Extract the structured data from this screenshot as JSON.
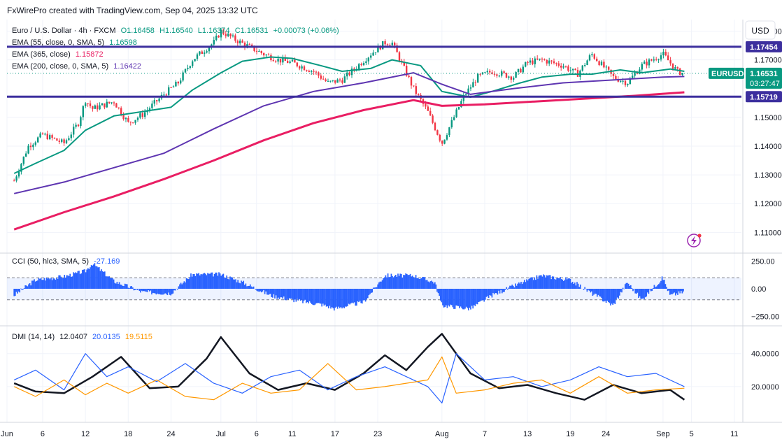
{
  "header": {
    "credit": "FxWirePro created with TradingView.com, Sep 04, 2025 13:32 UTC"
  },
  "price_pane": {
    "symbol_line": {
      "prefix": "Euro / U.S. Dollar · 4h · FXCM",
      "o": "O1.16458",
      "h": "H1.16540",
      "l": "L1.16374",
      "c": "C1.16531",
      "chg": "+0.00073 (+0.06%)"
    },
    "currency_button": "USD",
    "legends": [
      {
        "label": "EMA (55, close, 0, SMA, 5)",
        "value": "1.16598",
        "color": "#089981"
      },
      {
        "label": "EMA (365, close)",
        "value": "1.15872",
        "color": "#e91e63"
      },
      {
        "label": "EMA (200, close, 0, SMA, 5)",
        "value": "1.16422",
        "color": "#5e35b1"
      }
    ],
    "symbol_tag": "EURUSD",
    "price_tag": "1.16531",
    "countdown": "03:27:47",
    "resistance_tag": "1.17454",
    "support_tag": "1.15719",
    "colors": {
      "up": "#089981",
      "down": "#f23645",
      "level": "#3c2f9e",
      "ema55": "#089981",
      "ema200": "#5e35b1",
      "ema365": "#e91e63"
    }
  },
  "cci_pane": {
    "legend": "CCI (50, hlc3, SMA, 5)",
    "value": "-27.169",
    "color": "#2962ff"
  },
  "dmi_pane": {
    "legend": "DMI (14, 14)",
    "adx": {
      "value": "12.0407",
      "color": "#131722"
    },
    "plus_di": {
      "value": "20.0135",
      "color": "#2962ff"
    },
    "minus_di": {
      "value": "19.5115",
      "color": "#ff9800"
    }
  },
  "chart_data": [
    {
      "type": "candlestick",
      "title": "Euro / U.S. Dollar · 4h · FXCM",
      "x_ticks": [
        "Jun",
        "6",
        "12",
        "18",
        "24",
        "Jul",
        "6",
        "11",
        "17",
        "23",
        "Aug",
        "7",
        "13",
        "19",
        "24",
        "Sep",
        "5",
        "11"
      ],
      "y_ticks": [
        "1.18000",
        "1.17000",
        "1.15000",
        "1.14000",
        "1.13000",
        "1.12000",
        "1.11000"
      ],
      "ylim": [
        1.104,
        1.184
      ],
      "grid": true,
      "series": [
        {
          "name": "EMA (55, close, 0, SMA, 5)",
          "x": [
            "Jun 2",
            "Jun 5",
            "Jun 9",
            "Jun 12",
            "Jun 16",
            "Jun 20",
            "Jun 24",
            "Jun 27",
            "Jul 1",
            "Jul 4",
            "Jul 8",
            "Jul 11",
            "Jul 15",
            "Jul 18",
            "Jul 22",
            "Jul 25",
            "Jul 29",
            "Aug 1",
            "Aug 5",
            "Aug 8",
            "Aug 12",
            "Aug 15",
            "Aug 19",
            "Aug 22",
            "Aug 26",
            "Aug 29",
            "Sep 2",
            "Sep 4"
          ],
          "values": [
            1.1305,
            1.134,
            1.1385,
            1.1455,
            1.1505,
            1.152,
            1.1535,
            1.1595,
            1.1655,
            1.1695,
            1.171,
            1.1705,
            1.168,
            1.166,
            1.167,
            1.17,
            1.168,
            1.159,
            1.157,
            1.159,
            1.162,
            1.164,
            1.165,
            1.165,
            1.1665,
            1.1655,
            1.1668,
            1.166
          ]
        },
        {
          "name": "EMA (200, close, 0, SMA, 5)",
          "x": [
            "Jun 2",
            "Jun 9",
            "Jun 16",
            "Jun 23",
            "Jun 30",
            "Jul 7",
            "Jul 14",
            "Jul 21",
            "Jul 28",
            "Aug 1",
            "Aug 5",
            "Aug 11",
            "Aug 18",
            "Aug 25",
            "Sep 1",
            "Sep 4"
          ],
          "values": [
            1.1235,
            1.1275,
            1.1325,
            1.1375,
            1.146,
            1.154,
            1.159,
            1.162,
            1.1655,
            1.1615,
            1.158,
            1.16,
            1.162,
            1.163,
            1.164,
            1.1642
          ]
        },
        {
          "name": "EMA (365, close)",
          "x": [
            "Jun 2",
            "Jun 9",
            "Jun 16",
            "Jun 23",
            "Jun 30",
            "Jul 7",
            "Jul 14",
            "Jul 21",
            "Jul 28",
            "Aug 1",
            "Aug 7",
            "Aug 14",
            "Aug 21",
            "Aug 28",
            "Sep 4"
          ],
          "values": [
            1.111,
            1.117,
            1.1225,
            1.1285,
            1.135,
            1.142,
            1.148,
            1.1525,
            1.156,
            1.154,
            1.1545,
            1.1555,
            1.1565,
            1.1575,
            1.1587
          ]
        }
      ],
      "price_points": {
        "x": [
          "Jun 2",
          "Jun 4",
          "Jun 6",
          "Jun 9",
          "Jun 11",
          "Jun 12",
          "Jun 13",
          "Jun 16",
          "Jun 18",
          "Jun 20",
          "Jun 23",
          "Jun 25",
          "Jun 27",
          "Jun 30",
          "Jul 1",
          "Jul 3",
          "Jul 7",
          "Jul 9",
          "Jul 11",
          "Jul 14",
          "Jul 16",
          "Jul 18",
          "Jul 22",
          "Jul 24",
          "Jul 25",
          "Jul 28",
          "Jul 30",
          "Aug 1",
          "Aug 4",
          "Aug 6",
          "Aug 8",
          "Aug 11",
          "Aug 13",
          "Aug 15",
          "Aug 18",
          "Aug 20",
          "Aug 22",
          "Aug 25",
          "Aug 27",
          "Aug 29",
          "Sep 1",
          "Sep 3",
          "Sep 4"
        ],
        "values": [
          1.128,
          1.14,
          1.144,
          1.141,
          1.148,
          1.156,
          1.153,
          1.1555,
          1.148,
          1.151,
          1.158,
          1.162,
          1.17,
          1.176,
          1.18,
          1.177,
          1.172,
          1.17,
          1.169,
          1.166,
          1.162,
          1.163,
          1.172,
          1.176,
          1.176,
          1.16,
          1.152,
          1.141,
          1.157,
          1.164,
          1.166,
          1.164,
          1.169,
          1.17,
          1.168,
          1.165,
          1.172,
          1.164,
          1.162,
          1.168,
          1.172,
          1.166,
          1.1653
        ]
      },
      "levels": [
        {
          "name": "resistance",
          "value": 1.17454
        },
        {
          "name": "support",
          "value": 1.15719
        }
      ],
      "last_price": 1.16531
    },
    {
      "type": "area",
      "title": "CCI (50, hlc3, SMA, 5)",
      "y_ticks": [
        "250.00",
        "0.00",
        "−250.00"
      ],
      "ylim": [
        -310,
        310
      ],
      "bands": [
        100,
        -100
      ],
      "series": [
        {
          "name": "CCI",
          "x": [
            "Jun 2",
            "Jun 5",
            "Jun 9",
            "Jun 12",
            "Jun 13",
            "Jun 16",
            "Jun 20",
            "Jun 24",
            "Jun 27",
            "Jul 1",
            "Jul 4",
            "Jul 8",
            "Jul 11",
            "Jul 15",
            "Jul 17",
            "Jul 21",
            "Jul 24",
            "Jul 28",
            "Jul 31",
            "Aug 1",
            "Aug 5",
            "Aug 8",
            "Aug 12",
            "Aug 15",
            "Aug 19",
            "Aug 22",
            "Aug 25",
            "Aug 27",
            "Aug 29",
            "Sep 1",
            "Sep 2",
            "Sep 4"
          ],
          "values": [
            -60,
            80,
            110,
            160,
            230,
            70,
            -30,
            -40,
            130,
            130,
            60,
            -60,
            -100,
            -140,
            -180,
            -120,
            120,
            120,
            60,
            -150,
            -180,
            -60,
            50,
            120,
            80,
            -40,
            -150,
            60,
            -100,
            100,
            -60,
            -27
          ]
        }
      ]
    },
    {
      "type": "line",
      "title": "DMI (14, 14)",
      "y_ticks": [
        "40.0000",
        "20.0000"
      ],
      "ylim": [
        0,
        56
      ],
      "series": [
        {
          "name": "ADX",
          "x": [
            "Jun 2",
            "Jun 5",
            "Jun 9",
            "Jun 13",
            "Jun 17",
            "Jun 21",
            "Jun 25",
            "Jun 29",
            "Jul 1",
            "Jul 5",
            "Jul 9",
            "Jul 13",
            "Jul 17",
            "Jul 21",
            "Jul 24",
            "Jul 27",
            "Jul 30",
            "Aug 1",
            "Aug 5",
            "Aug 9",
            "Aug 13",
            "Aug 17",
            "Aug 21",
            "Aug 25",
            "Aug 29",
            "Sep 2",
            "Sep 4"
          ],
          "values": [
            22,
            17,
            16,
            26,
            38,
            19,
            20,
            37,
            50,
            28,
            18,
            22,
            18,
            28,
            39,
            30,
            44,
            52,
            28,
            19,
            21,
            16,
            12,
            21,
            16,
            18,
            12
          ]
        },
        {
          "name": "DI+",
          "x": [
            "Jun 2",
            "Jun 5",
            "Jun 9",
            "Jun 12",
            "Jun 15",
            "Jun 18",
            "Jun 22",
            "Jun 26",
            "Jun 30",
            "Jul 4",
            "Jul 8",
            "Jul 12",
            "Jul 16",
            "Jul 20",
            "Jul 24",
            "Jul 27",
            "Jul 30",
            "Aug 1",
            "Aug 3",
            "Aug 7",
            "Aug 11",
            "Aug 15",
            "Aug 19",
            "Aug 23",
            "Aug 27",
            "Aug 31",
            "Sep 4"
          ],
          "values": [
            24,
            30,
            18,
            40,
            26,
            32,
            23,
            34,
            22,
            16,
            26,
            30,
            18,
            26,
            32,
            26,
            20,
            10,
            40,
            24,
            26,
            20,
            24,
            32,
            26,
            28,
            20
          ]
        },
        {
          "name": "DI−",
          "x": [
            "Jun 2",
            "Jun 5",
            "Jun 9",
            "Jun 12",
            "Jun 15",
            "Jun 18",
            "Jun 22",
            "Jun 26",
            "Jun 30",
            "Jul 4",
            "Jul 8",
            "Jul 12",
            "Jul 16",
            "Jul 20",
            "Jul 24",
            "Jul 27",
            "Jul 30",
            "Aug 1",
            "Aug 3",
            "Aug 7",
            "Aug 11",
            "Aug 15",
            "Aug 19",
            "Aug 23",
            "Aug 27",
            "Aug 31",
            "Sep 4"
          ],
          "values": [
            20,
            14,
            24,
            15,
            22,
            16,
            24,
            14,
            12,
            22,
            16,
            18,
            34,
            18,
            20,
            22,
            24,
            38,
            16,
            18,
            22,
            24,
            16,
            26,
            16,
            18,
            19
          ]
        }
      ]
    }
  ]
}
